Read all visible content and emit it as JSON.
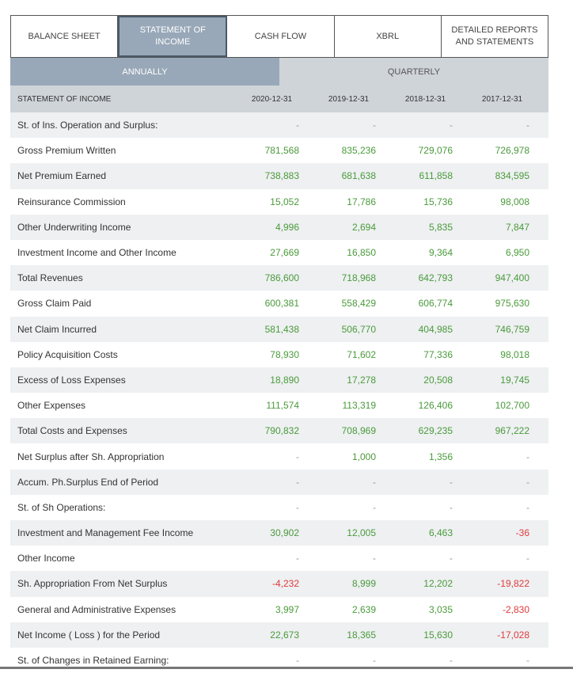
{
  "tabs": [
    {
      "label": "BALANCE SHEET",
      "active": false
    },
    {
      "label": "STATEMENT OF\nINCOME",
      "active": true
    },
    {
      "label": "CASH FLOW",
      "active": false
    },
    {
      "label": "XBRL",
      "active": false
    },
    {
      "label": "DETAILED REPORTS\nAND STATEMENTS",
      "active": false
    }
  ],
  "periods": {
    "annual": "ANNUALLY",
    "quarterly": "QUARTERLY",
    "selected": "annual"
  },
  "table": {
    "header": "STATEMENT OF INCOME",
    "columns": [
      "2020-12-31",
      "2019-12-31",
      "2018-12-31",
      "2017-12-31"
    ],
    "rows": [
      {
        "label": "St. of Ins. Operation and Surplus:",
        "values": [
          "-",
          "-",
          "-",
          "-"
        ]
      },
      {
        "label": "Gross Premium Written",
        "values": [
          "781,568",
          "835,236",
          "729,076",
          "726,978"
        ]
      },
      {
        "label": "Net Premium Earned",
        "values": [
          "738,883",
          "681,638",
          "611,858",
          "834,595"
        ]
      },
      {
        "label": "Reinsurance Commission",
        "values": [
          "15,052",
          "17,786",
          "15,736",
          "98,008"
        ]
      },
      {
        "label": "Other Underwriting Income",
        "values": [
          "4,996",
          "2,694",
          "5,835",
          "7,847"
        ]
      },
      {
        "label": "Investment Income and Other Income",
        "values": [
          "27,669",
          "16,850",
          "9,364",
          "6,950"
        ]
      },
      {
        "label": "Total Revenues",
        "values": [
          "786,600",
          "718,968",
          "642,793",
          "947,400"
        ]
      },
      {
        "label": "Gross Claim Paid",
        "values": [
          "600,381",
          "558,429",
          "606,774",
          "975,630"
        ]
      },
      {
        "label": "Net Claim Incurred",
        "values": [
          "581,438",
          "506,770",
          "404,985",
          "746,759"
        ]
      },
      {
        "label": "Policy Acquisition Costs",
        "values": [
          "78,930",
          "71,602",
          "77,336",
          "98,018"
        ]
      },
      {
        "label": "Excess of Loss Expenses",
        "values": [
          "18,890",
          "17,278",
          "20,508",
          "19,745"
        ]
      },
      {
        "label": "Other Expenses",
        "values": [
          "111,574",
          "113,319",
          "126,406",
          "102,700"
        ]
      },
      {
        "label": "Total Costs and Expenses",
        "values": [
          "790,832",
          "708,969",
          "629,235",
          "967,222"
        ]
      },
      {
        "label": "Net Surplus after Sh. Appropriation",
        "values": [
          "-",
          "1,000",
          "1,356",
          "-"
        ]
      },
      {
        "label": "Accum. Ph.Surplus End of Period",
        "values": [
          "-",
          "-",
          "-",
          "-"
        ]
      },
      {
        "label": "St. of Sh Operations:",
        "values": [
          "-",
          "-",
          "-",
          "-"
        ]
      },
      {
        "label": "Investment and Management Fee Income",
        "values": [
          "30,902",
          "12,005",
          "6,463",
          "-36"
        ]
      },
      {
        "label": "Other Income",
        "values": [
          "-",
          "-",
          "-",
          "-"
        ]
      },
      {
        "label": "Sh. Appropriation From Net Surplus",
        "values": [
          "-4,232",
          "8,999",
          "12,202",
          "-19,822"
        ]
      },
      {
        "label": "General and Administrative Expenses",
        "values": [
          "3,997",
          "2,639",
          "3,035",
          "-2,830"
        ]
      },
      {
        "label": "Net Income ( Loss ) for the Period",
        "values": [
          "22,673",
          "18,365",
          "15,630",
          "-17,028"
        ]
      },
      {
        "label": "St. of Changes in Retained Earning:",
        "values": [
          "-",
          "-",
          "-",
          "-"
        ]
      }
    ]
  },
  "colors": {
    "positive": "#4a9a3a",
    "negative": "#e03a3a",
    "empty": "#999999",
    "accent": "#98a8b8"
  }
}
